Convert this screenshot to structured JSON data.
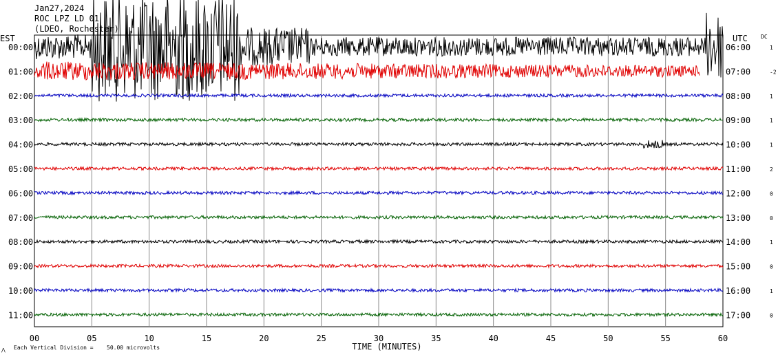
{
  "chart_data": {
    "type": "line",
    "title": "Jan27,2024",
    "station": "ROC LPZ LD 01",
    "network": "(LDEO, Rochester)",
    "left_axis_title": "EST",
    "right_axis_title": "UTC",
    "dc_title": "DC",
    "xlabel": "TIME (MINUTES)",
    "xlim": [
      0,
      60
    ],
    "x_ticks": [
      "00",
      "05",
      "10",
      "15",
      "20",
      "25",
      "30",
      "35",
      "40",
      "45",
      "50",
      "55",
      "60"
    ],
    "grid": true,
    "scale_note": "Each Vertical Division =",
    "scale_value": "50.00 microvolts",
    "trace_colors": [
      "#000000",
      "#e00000",
      "#0000c0",
      "#006000"
    ],
    "rows": [
      {
        "est": "00:00",
        "utc": "06:00",
        "dc": "1"
      },
      {
        "est": "01:00",
        "utc": "07:00",
        "dc": "-2"
      },
      {
        "est": "02:00",
        "utc": "08:00",
        "dc": "1"
      },
      {
        "est": "03:00",
        "utc": "09:00",
        "dc": "1"
      },
      {
        "est": "04:00",
        "utc": "10:00",
        "dc": "1"
      },
      {
        "est": "05:00",
        "utc": "11:00",
        "dc": "2"
      },
      {
        "est": "06:00",
        "utc": "12:00",
        "dc": "0"
      },
      {
        "est": "07:00",
        "utc": "13:00",
        "dc": "0"
      },
      {
        "est": "08:00",
        "utc": "14:00",
        "dc": "1"
      },
      {
        "est": "09:00",
        "utc": "15:00",
        "dc": "0"
      },
      {
        "est": "10:00",
        "utc": "16:00",
        "dc": "1"
      },
      {
        "est": "11:00",
        "utc": "17:00",
        "dc": "0"
      }
    ],
    "events": [
      {
        "start_row": 0,
        "start_min": 0,
        "end_row": 1,
        "end_min": 58,
        "peak_min": 7,
        "description": "large teleseismic earthquake"
      },
      {
        "start_row": 0,
        "start_min": 58.5,
        "end_row": 0,
        "end_min": 60,
        "description": "burst"
      },
      {
        "start_row": 4,
        "start_min": 53,
        "end_row": 4,
        "end_min": 55,
        "description": "small event"
      }
    ]
  }
}
